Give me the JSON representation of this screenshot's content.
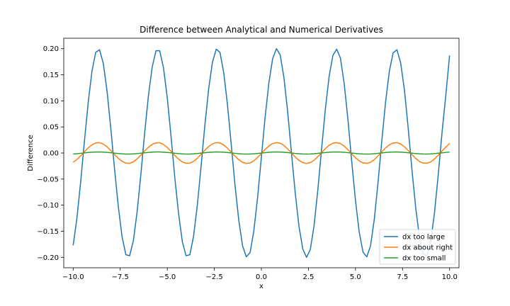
{
  "chart_data": {
    "type": "line",
    "title": "Difference between Analytical and Numerical Derivatives",
    "xlabel": "x",
    "ylabel": "Difference",
    "xlim": [
      -10.5,
      10.5
    ],
    "ylim": [
      -0.22,
      0.22
    ],
    "xticks": [
      -10.0,
      -7.5,
      -5.0,
      -2.5,
      0.0,
      2.5,
      5.0,
      7.5,
      10.0
    ],
    "xtick_labels": [
      "−10.0",
      "−7.5",
      "−5.0",
      "−2.5",
      "0.0",
      "2.5",
      "5.0",
      "7.5",
      "10.0"
    ],
    "yticks": [
      -0.2,
      -0.15,
      -0.1,
      -0.05,
      0.0,
      0.05,
      0.1,
      0.15,
      0.2
    ],
    "ytick_labels": [
      "−0.20",
      "−0.15",
      "−0.10",
      "−0.05",
      "0.00",
      "0.05",
      "0.10",
      "0.15",
      "0.20"
    ],
    "grid": false,
    "legend_position": "lower-right",
    "x": [
      -10.0,
      -9.8,
      -9.6,
      -9.4,
      -9.2,
      -9.0,
      -8.8,
      -8.6,
      -8.4,
      -8.2,
      -8.0,
      -7.8,
      -7.6,
      -7.4,
      -7.2,
      -7.0,
      -6.8,
      -6.6,
      -6.4,
      -6.2,
      -6.0,
      -5.8,
      -5.6,
      -5.4,
      -5.2,
      -5.0,
      -4.8,
      -4.6,
      -4.4,
      -4.2,
      -4.0,
      -3.8,
      -3.6,
      -3.4,
      -3.2,
      -3.0,
      -2.8,
      -2.6,
      -2.4,
      -2.2,
      -2.0,
      -1.8,
      -1.6,
      -1.4,
      -1.2,
      -1.0,
      -0.8,
      -0.6,
      -0.4,
      -0.2,
      0.0,
      0.2,
      0.4,
      0.6,
      0.8,
      1.0,
      1.2,
      1.4,
      1.6,
      1.8,
      2.0,
      2.2,
      2.4,
      2.6,
      2.8,
      3.0,
      3.2,
      3.4,
      3.6,
      3.8,
      4.0,
      4.2,
      4.4,
      4.6,
      4.8,
      5.0,
      5.2,
      5.4,
      5.6,
      5.8,
      6.0,
      6.2,
      6.4,
      6.6,
      6.8,
      7.0,
      7.2,
      7.4,
      7.6,
      7.8,
      8.0,
      8.2,
      8.4,
      8.6,
      8.8,
      9.0,
      9.2,
      9.4,
      9.6,
      9.8,
      10.0
    ],
    "series": [
      {
        "name": "dx too large",
        "color": "#1f77b4",
        "values": [
          -0.177,
          -0.125,
          -0.055,
          0.023,
          0.097,
          0.157,
          0.193,
          0.198,
          0.172,
          0.119,
          0.047,
          -0.031,
          -0.103,
          -0.161,
          -0.195,
          -0.197,
          -0.168,
          -0.112,
          -0.04,
          0.039,
          0.11,
          0.165,
          0.196,
          0.196,
          0.163,
          0.106,
          0.032,
          -0.047,
          -0.116,
          -0.17,
          -0.197,
          -0.195,
          -0.159,
          -0.099,
          -0.024,
          0.054,
          0.123,
          0.174,
          0.199,
          0.193,
          0.154,
          0.092,
          0.016,
          -0.062,
          -0.129,
          -0.178,
          -0.199,
          -0.191,
          -0.149,
          -0.085,
          -0.008,
          0.069,
          0.135,
          0.181,
          0.2,
          0.188,
          0.144,
          0.078,
          0.0,
          -0.077,
          -0.141,
          -0.184,
          -0.2,
          -0.185,
          -0.139,
          -0.071,
          0.008,
          0.084,
          0.147,
          0.187,
          0.199,
          0.182,
          0.133,
          0.064,
          -0.016,
          -0.091,
          -0.152,
          -0.19,
          -0.199,
          -0.178,
          -0.127,
          -0.056,
          0.024,
          0.098,
          0.157,
          0.192,
          0.198,
          0.173,
          0.121,
          0.048,
          -0.032,
          -0.105,
          -0.162,
          -0.194,
          -0.197,
          -0.169,
          -0.114,
          -0.041,
          0.04,
          0.111,
          0.187
        ]
      },
      {
        "name": "dx about right",
        "color": "#ff7f0e",
        "values": [
          -0.0177,
          -0.0125,
          -0.0055,
          0.0023,
          0.0097,
          0.0157,
          0.0193,
          0.0198,
          0.0172,
          0.0119,
          0.0047,
          -0.0031,
          -0.0103,
          -0.0161,
          -0.0195,
          -0.0197,
          -0.0168,
          -0.0112,
          -0.004,
          0.0039,
          0.011,
          0.0165,
          0.0196,
          0.0196,
          0.0163,
          0.0106,
          0.0032,
          -0.0047,
          -0.0116,
          -0.017,
          -0.0197,
          -0.0195,
          -0.0159,
          -0.0099,
          -0.0024,
          0.0054,
          0.0123,
          0.0174,
          0.0199,
          0.0193,
          0.0154,
          0.0092,
          0.0016,
          -0.0062,
          -0.0129,
          -0.0178,
          -0.0199,
          -0.0191,
          -0.0149,
          -0.0085,
          -0.0008,
          0.0069,
          0.0135,
          0.0181,
          0.02,
          0.0188,
          0.0144,
          0.0078,
          0.0,
          -0.0077,
          -0.0141,
          -0.0184,
          -0.02,
          -0.0185,
          -0.0139,
          -0.0071,
          0.0008,
          0.0084,
          0.0147,
          0.0187,
          0.0199,
          0.0182,
          0.0133,
          0.0064,
          -0.0016,
          -0.0091,
          -0.0152,
          -0.019,
          -0.0199,
          -0.0178,
          -0.0127,
          -0.0056,
          0.0024,
          0.0098,
          0.0157,
          0.0192,
          0.0198,
          0.0173,
          0.0121,
          0.0048,
          -0.0032,
          -0.0105,
          -0.0162,
          -0.0194,
          -0.0197,
          -0.0169,
          -0.0114,
          -0.0041,
          0.004,
          0.0111,
          0.0187
        ]
      },
      {
        "name": "dx too small",
        "color": "#2ca02c",
        "values": [
          -0.0018,
          -0.0013,
          -0.0006,
          0.0002,
          0.001,
          0.0016,
          0.0019,
          0.002,
          0.0017,
          0.0012,
          0.0005,
          -0.0003,
          -0.001,
          -0.0016,
          -0.002,
          -0.002,
          -0.0017,
          -0.0011,
          -0.0004,
          0.0004,
          0.0011,
          0.0017,
          0.002,
          0.002,
          0.0016,
          0.0011,
          0.0003,
          -0.0005,
          -0.0012,
          -0.0017,
          -0.002,
          -0.002,
          -0.0016,
          -0.001,
          -0.0002,
          0.0005,
          0.0012,
          0.0017,
          0.002,
          0.0019,
          0.0015,
          0.0009,
          0.0002,
          -0.0006,
          -0.0013,
          -0.0018,
          -0.002,
          -0.0019,
          -0.0015,
          -0.0009,
          -0.0001,
          0.0007,
          0.0014,
          0.0018,
          0.002,
          0.0019,
          0.0014,
          0.0008,
          0.0,
          -0.0008,
          -0.0014,
          -0.0018,
          -0.002,
          -0.0019,
          -0.0014,
          -0.0007,
          0.0001,
          0.0008,
          0.0015,
          0.0019,
          0.002,
          0.0018,
          0.0013,
          0.0006,
          -0.0002,
          -0.0009,
          -0.0015,
          -0.0019,
          -0.002,
          -0.0018,
          -0.0013,
          -0.0006,
          0.0002,
          0.001,
          0.0016,
          0.0019,
          0.002,
          0.0017,
          0.0012,
          0.0005,
          -0.0003,
          -0.0011,
          -0.0016,
          -0.0019,
          -0.002,
          -0.0017,
          -0.0011,
          -0.0004,
          0.0004,
          0.0011,
          0.0019
        ]
      }
    ]
  }
}
